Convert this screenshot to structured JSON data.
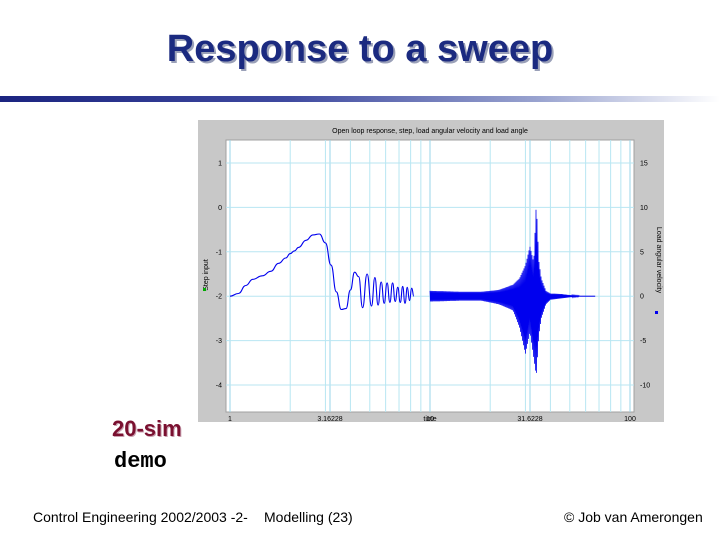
{
  "slide": {
    "title": "Response to a sweep",
    "demo_brand": "20-sim",
    "demo_word": "demo",
    "footer_left": "Control Engineering 2002/2003 -2-",
    "footer_center": "Modelling  (23)",
    "footer_right": "© Job van Amerongen"
  },
  "colors": {
    "title": "#1b2a80",
    "brand": "#7a1030",
    "series": "#0000ee",
    "step_marker": "#00aa00"
  },
  "chart_data": {
    "type": "line",
    "title": "Open loop response, step, load angular velocity and load angle",
    "xlabel": "time",
    "x_scale": "log",
    "xlim": [
      1,
      100
    ],
    "x_ticks": [
      1,
      3.16228,
      10,
      31.6228,
      100
    ],
    "x_tick_labels": [
      "1",
      "3.16228",
      "10",
      "31.6228",
      "100"
    ],
    "ylabel_left": "Step input",
    "ylim_left": [
      -4,
      1
    ],
    "y_left_ticks": [
      "1",
      "0",
      "-1",
      "-2",
      "-3",
      "-4"
    ],
    "ylabel_right": "Load angular velocity",
    "ylim_right": [
      -10,
      15
    ],
    "y_right_ticks": [
      "15",
      "10",
      "5",
      "0",
      "-5",
      "-10"
    ],
    "grid": true,
    "series": [
      {
        "name": "Load angular velocity",
        "axis": "right",
        "color": "#0000ee",
        "x": [
          1,
          1.1,
          1.2,
          1.3,
          1.45,
          1.6,
          1.75,
          1.9,
          2.0,
          2.1,
          2.2,
          2.4,
          2.6,
          2.8,
          3.0,
          3.2,
          3.4,
          3.6,
          3.8,
          4.0,
          4.2,
          4.4,
          4.6,
          4.85,
          5.1,
          5.3,
          5.5,
          5.7,
          5.9,
          6.1,
          6.3,
          6.5,
          6.7,
          6.9,
          7.1,
          7.3,
          7.5,
          7.7,
          7.9,
          8.1,
          8.3
        ],
        "y": [
          0,
          0.3,
          1.2,
          1.9,
          2.3,
          2.8,
          3.7,
          4.3,
          4.8,
          5.1,
          5.5,
          6.3,
          6.9,
          7.0,
          6.0,
          3.5,
          0.5,
          -1.5,
          -1.4,
          0.7,
          2.7,
          2.2,
          -1.3,
          2.5,
          -1.1,
          2.1,
          -1.0,
          1.6,
          -0.8,
          1.5,
          -0.7,
          1.5,
          -0.6,
          1.0,
          -0.7,
          1.1,
          -0.8,
          1.0,
          -0.5,
          0.9,
          0
        ]
      }
    ],
    "burst": {
      "x_start": 10,
      "x_end": 56,
      "envelope_x": [
        10,
        14,
        18,
        22,
        26,
        28,
        30,
        31.6,
        33,
        34,
        35,
        36,
        38,
        40,
        45,
        50,
        56
      ],
      "envelope_max": [
        0.6,
        0.5,
        0.5,
        0.7,
        1.3,
        2.0,
        3.5,
        5.6,
        3.8,
        10.5,
        4.0,
        2.0,
        0.6,
        0.3,
        0.25,
        0.12,
        0.05
      ],
      "envelope_min": [
        -0.6,
        -0.5,
        -0.5,
        -0.9,
        -1.6,
        -3.5,
        -6.5,
        -4.0,
        -7.0,
        -9.0,
        -4.5,
        -2.5,
        -0.9,
        -0.4,
        -0.25,
        -0.12,
        -0.05
      ]
    },
    "flat_after": {
      "x_start": 56,
      "x_end": 67,
      "y": 0
    }
  }
}
